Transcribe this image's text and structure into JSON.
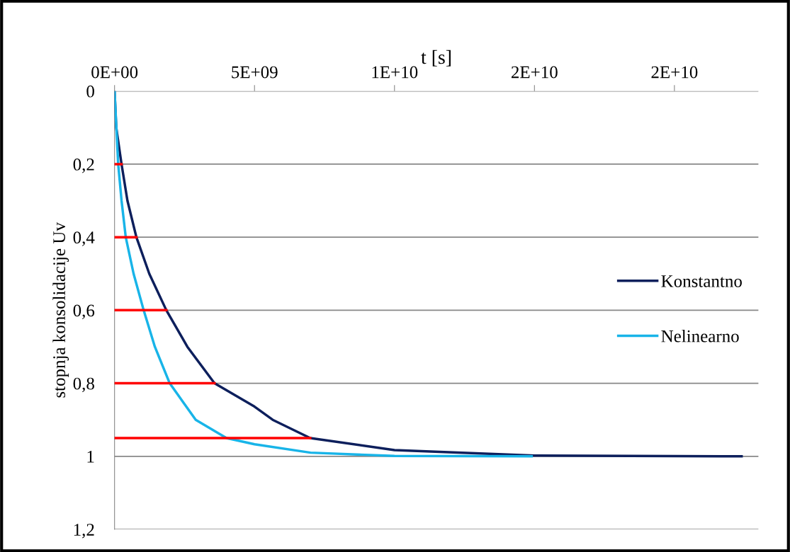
{
  "chart_data": {
    "type": "line",
    "xlabel": "t [s]",
    "ylabel": "stopnja konsolidacije Uv",
    "xlim": [
      0,
      23000000000
    ],
    "xticks": [
      {
        "value": 0,
        "label": "0E+00"
      },
      {
        "value": 5000000000,
        "label": "5E+09"
      },
      {
        "value": 10000000000,
        "label": "1E+10"
      },
      {
        "value": 15000000000,
        "label": "2E+10"
      },
      {
        "value": 20000000000,
        "label": "2E+10"
      }
    ],
    "ylim": [
      1.2,
      0
    ],
    "yticks": [
      {
        "value": 0,
        "label": "0"
      },
      {
        "value": 0.2,
        "label": "0,2"
      },
      {
        "value": 0.4,
        "label": "0,4"
      },
      {
        "value": 0.6,
        "label": "0,6"
      },
      {
        "value": 0.8,
        "label": "0,8"
      },
      {
        "value": 1,
        "label": "1"
      },
      {
        "value": 1.2,
        "label": "1,2"
      }
    ],
    "grid": "y",
    "legend": "right",
    "marker": "none",
    "line_style": "solid",
    "series": [
      {
        "name": "Konstantno",
        "color": "#0d1f5c",
        "x": [
          0,
          60000000,
          250000000,
          460000000,
          780000000,
          1240000000,
          1850000000,
          2600000000,
          3570000000,
          5000000000,
          5650000000,
          6990000000,
          10000000000,
          15000000000,
          22400000000
        ],
        "values": [
          0,
          0.1,
          0.2,
          0.3,
          0.4,
          0.5,
          0.6,
          0.7,
          0.8,
          0.864,
          0.9,
          0.95,
          0.983,
          0.998,
          1.0
        ]
      },
      {
        "name": "Nelinearno",
        "color": "#18b4e8",
        "x": [
          0,
          130000000,
          250000000,
          400000000,
          680000000,
          1040000000,
          1440000000,
          1970000000,
          2900000000,
          4000000000,
          5000000000,
          7000000000,
          10000000000,
          14900000000
        ],
        "values": [
          0,
          0.2,
          0.3,
          0.4,
          0.5,
          0.6,
          0.7,
          0.8,
          0.9,
          0.95,
          0.967,
          0.99,
          0.999,
          1.0
        ]
      },
      {
        "color": "#ff0000",
        "x": [
          0,
          250000000
        ],
        "values": [
          0.2,
          0.2
        ]
      },
      {
        "color": "#ff0000",
        "x": [
          0,
          780000000
        ],
        "values": [
          0.4,
          0.4
        ]
      },
      {
        "color": "#ff0000",
        "x": [
          0,
          1850000000
        ],
        "values": [
          0.6,
          0.6
        ]
      },
      {
        "color": "#ff0000",
        "x": [
          0,
          3570000000
        ],
        "values": [
          0.8,
          0.8
        ]
      },
      {
        "color": "#ff0000",
        "x": [
          0,
          6990000000
        ],
        "values": [
          0.95,
          0.95
        ]
      }
    ]
  }
}
